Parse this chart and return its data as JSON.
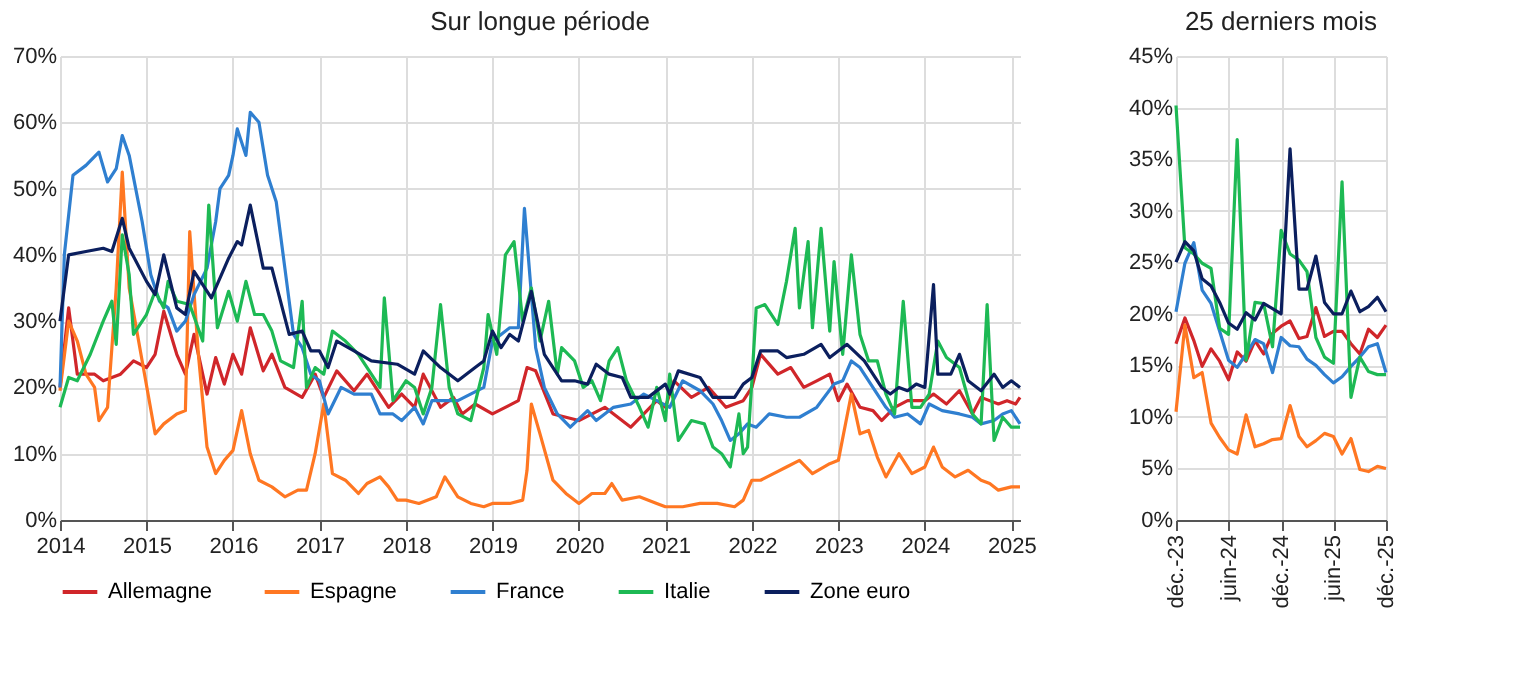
{
  "chart_data": [
    {
      "type": "line",
      "title": "Sur longue période",
      "xlim": [
        2014,
        2025.1
      ],
      "xticks": [
        2014,
        2015,
        2016,
        2017,
        2018,
        2019,
        2020,
        2021,
        2022,
        2023,
        2024,
        2025
      ],
      "ylim": [
        0,
        70
      ],
      "yticks": [
        {
          "value": 0,
          "label": "0%"
        },
        {
          "value": 10,
          "label": "10%"
        },
        {
          "value": 20,
          "label": "20%"
        },
        {
          "value": 30,
          "label": "30%"
        },
        {
          "value": 40,
          "label": "40%"
        },
        {
          "value": 50,
          "label": "50%"
        },
        {
          "value": 60,
          "label": "60%"
        },
        {
          "value": 70,
          "label": "70%"
        }
      ],
      "grid": true,
      "legend": "bottom",
      "line_style": "solid",
      "series": [
        {
          "name": "Allemagne",
          "color": "#d0262a",
          "x": [
            2014.0,
            2014.1,
            2014.2,
            2014.4,
            2014.5,
            2014.7,
            2014.85,
            2015.0,
            2015.1,
            2015.2,
            2015.35,
            2015.45,
            2015.55,
            2015.7,
            2015.8,
            2015.9,
            2016.0,
            2016.1,
            2016.2,
            2016.35,
            2016.45,
            2016.6,
            2016.8,
            2016.95,
            2017.05,
            2017.2,
            2017.4,
            2017.55,
            2017.7,
            2017.8,
            2017.95,
            2018.1,
            2018.2,
            2018.4,
            2018.55,
            2018.65,
            2018.8,
            2019.0,
            2019.3,
            2019.4,
            2019.5,
            2019.7,
            2020.0,
            2020.3,
            2020.6,
            2020.9,
            2021.0,
            2021.1,
            2021.3,
            2021.5,
            2021.7,
            2021.9,
            2022.0,
            2022.1,
            2022.3,
            2022.45,
            2022.6,
            2022.75,
            2022.9,
            2023.0,
            2023.1,
            2023.25,
            2023.4,
            2023.5,
            2023.65,
            2023.8,
            2024.0,
            2024.1,
            2024.25,
            2024.4,
            2024.55,
            2024.65,
            2024.85,
            2024.95,
            2025.05,
            2025.1
          ],
          "values": [
            20,
            32,
            22,
            22,
            21,
            22,
            24,
            23,
            25,
            31.5,
            25,
            22,
            28,
            19,
            24.5,
            20.5,
            25,
            22,
            29,
            22.5,
            25,
            20,
            18.5,
            22,
            18.5,
            22.5,
            19.5,
            22,
            19,
            17,
            19,
            17,
            22,
            17,
            18.5,
            16,
            17.5,
            16,
            18,
            23,
            22.5,
            16,
            15,
            17,
            14,
            18,
            17,
            21,
            18.5,
            20,
            17,
            18,
            20,
            25,
            22,
            23,
            20,
            21,
            22,
            18,
            20.5,
            17,
            16.5,
            15,
            17,
            18,
            18,
            19,
            17.5,
            19.5,
            16,
            18.5,
            17.5,
            18,
            17.5,
            18.5
          ]
        },
        {
          "name": "Espagne",
          "color": "#ff7722",
          "x": [
            2014.0,
            2014.1,
            2014.2,
            2014.3,
            2014.4,
            2014.45,
            2014.55,
            2014.65,
            2014.72,
            2014.8,
            2014.95,
            2015.1,
            2015.2,
            2015.35,
            2015.45,
            2015.5,
            2015.6,
            2015.7,
            2015.8,
            2015.9,
            2016.0,
            2016.1,
            2016.2,
            2016.3,
            2016.45,
            2016.6,
            2016.75,
            2016.85,
            2016.95,
            2017.05,
            2017.15,
            2017.3,
            2017.45,
            2017.55,
            2017.7,
            2017.8,
            2017.9,
            2018.0,
            2018.15,
            2018.35,
            2018.45,
            2018.6,
            2018.75,
            2018.9,
            2019.0,
            2019.2,
            2019.35,
            2019.4,
            2019.45,
            2019.55,
            2019.7,
            2019.85,
            2020.0,
            2020.15,
            2020.3,
            2020.38,
            2020.5,
            2020.7,
            2020.9,
            2021.0,
            2021.2,
            2021.4,
            2021.6,
            2021.8,
            2021.9,
            2022.0,
            2022.1,
            2022.25,
            2022.4,
            2022.55,
            2022.7,
            2022.9,
            2023.0,
            2023.15,
            2023.25,
            2023.35,
            2023.45,
            2023.55,
            2023.7,
            2023.85,
            2024.0,
            2024.1,
            2024.2,
            2024.35,
            2024.5,
            2024.65,
            2024.75,
            2024.85,
            2025.0,
            2025.1
          ],
          "values": [
            19.5,
            30,
            27,
            22,
            20,
            15,
            17,
            35,
            52.5,
            35,
            24,
            13,
            14.5,
            16,
            16.5,
            43.5,
            25,
            11,
            7,
            9,
            10.5,
            16.5,
            10,
            6,
            5,
            3.5,
            4.5,
            4.5,
            10,
            17.5,
            7,
            6,
            4,
            5.5,
            6.5,
            5,
            3,
            3,
            2.5,
            3.5,
            6.5,
            3.5,
            2.5,
            2,
            2.5,
            2.5,
            3,
            7.5,
            17.5,
            13,
            6,
            4,
            2.5,
            4,
            4,
            5.5,
            3,
            3.5,
            2.5,
            2,
            2,
            2.5,
            2.5,
            2,
            3,
            6,
            6,
            7,
            8,
            9,
            7,
            8.5,
            9,
            19,
            13,
            13.5,
            9.5,
            6.5,
            10,
            7,
            8,
            11,
            8,
            6.5,
            7.5,
            6,
            5.5,
            4.5,
            5,
            5
          ]
        },
        {
          "name": "France",
          "color": "#2f7fd0",
          "x": [
            2014.0,
            2014.05,
            2014.15,
            2014.3,
            2014.45,
            2014.55,
            2014.65,
            2014.72,
            2014.8,
            2014.95,
            2015.05,
            2015.15,
            2015.25,
            2015.35,
            2015.45,
            2015.55,
            2015.7,
            2015.8,
            2015.85,
            2015.95,
            2016.0,
            2016.05,
            2016.15,
            2016.2,
            2016.3,
            2016.4,
            2016.5,
            2016.6,
            2016.7,
            2016.8,
            2016.9,
            2017.0,
            2017.1,
            2017.25,
            2017.4,
            2017.6,
            2017.7,
            2017.85,
            2017.95,
            2018.1,
            2018.2,
            2018.3,
            2018.5,
            2018.6,
            2018.9,
            2019.0,
            2019.1,
            2019.2,
            2019.3,
            2019.37,
            2019.5,
            2019.6,
            2019.75,
            2019.9,
            2020.1,
            2020.2,
            2020.4,
            2020.6,
            2020.75,
            2020.9,
            2021.05,
            2021.2,
            2021.4,
            2021.55,
            2021.65,
            2021.75,
            2021.85,
            2021.95,
            2022.05,
            2022.2,
            2022.4,
            2022.55,
            2022.75,
            2022.95,
            2023.05,
            2023.15,
            2023.25,
            2023.45,
            2023.55,
            2023.65,
            2023.8,
            2023.95,
            2024.05,
            2024.2,
            2024.4,
            2024.55,
            2024.65,
            2024.8,
            2024.9,
            2025.0,
            2025.1
          ],
          "values": [
            20,
            40,
            52,
            53.5,
            55.5,
            51,
            53,
            58,
            55,
            45,
            37,
            33,
            32,
            28.5,
            30,
            34,
            38,
            45,
            50,
            52,
            55,
            59,
            55,
            61.5,
            60,
            52,
            48,
            38,
            28,
            26,
            22,
            21,
            16,
            20,
            19,
            19,
            16,
            16,
            15,
            17,
            14.5,
            18,
            18,
            18,
            20,
            27,
            28,
            29,
            29,
            47,
            26,
            20,
            16,
            14,
            16.5,
            15,
            17,
            17.5,
            19,
            18,
            17,
            21,
            19.5,
            17.5,
            15,
            12,
            13,
            14.5,
            14,
            16,
            15.5,
            15.5,
            17,
            20.5,
            21,
            24,
            23,
            19,
            17,
            15.5,
            16,
            14.5,
            17.5,
            16.5,
            16,
            15.5,
            14.5,
            15,
            16,
            16.5,
            14.5
          ]
        },
        {
          "name": "Italie",
          "color": "#1db954",
          "x": [
            2014.0,
            2014.1,
            2014.2,
            2014.35,
            2014.5,
            2014.6,
            2014.65,
            2014.72,
            2014.8,
            2014.85,
            2015.0,
            2015.1,
            2015.2,
            2015.25,
            2015.35,
            2015.5,
            2015.65,
            2015.72,
            2015.82,
            2015.95,
            2016.05,
            2016.15,
            2016.25,
            2016.35,
            2016.45,
            2016.55,
            2016.7,
            2016.8,
            2016.85,
            2016.95,
            2017.05,
            2017.15,
            2017.3,
            2017.45,
            2017.6,
            2017.7,
            2017.75,
            2017.85,
            2018.0,
            2018.1,
            2018.2,
            2018.3,
            2018.4,
            2018.5,
            2018.6,
            2018.75,
            2018.9,
            2018.95,
            2019.05,
            2019.15,
            2019.25,
            2019.35,
            2019.45,
            2019.55,
            2019.65,
            2019.75,
            2019.8,
            2019.95,
            2020.05,
            2020.15,
            2020.25,
            2020.35,
            2020.45,
            2020.55,
            2020.7,
            2020.8,
            2020.9,
            2021.0,
            2021.05,
            2021.15,
            2021.3,
            2021.45,
            2021.55,
            2021.65,
            2021.75,
            2021.85,
            2021.9,
            2021.95,
            2022.0,
            2022.05,
            2022.15,
            2022.3,
            2022.4,
            2022.5,
            2022.55,
            2022.65,
            2022.7,
            2022.8,
            2022.9,
            2022.95,
            2023.05,
            2023.15,
            2023.25,
            2023.35,
            2023.45,
            2023.55,
            2023.65,
            2023.75,
            2023.85,
            2023.95,
            2024.05,
            2024.15,
            2024.25,
            2024.4,
            2024.55,
            2024.65,
            2024.72,
            2024.8,
            2024.9,
            2025.0,
            2025.1
          ],
          "values": [
            17,
            21.5,
            21,
            25,
            30,
            33,
            26.5,
            43,
            37,
            28,
            31,
            34.5,
            32,
            36,
            33,
            32.5,
            27,
            47.5,
            29,
            34.5,
            30,
            36,
            31,
            31,
            28.5,
            24,
            23,
            33,
            20,
            23,
            22,
            28.5,
            27,
            25,
            22,
            20,
            33.5,
            18,
            21,
            20,
            16,
            20,
            32.5,
            20,
            16,
            15,
            23,
            31,
            25,
            40,
            42,
            30,
            35,
            27,
            33,
            22,
            26,
            24,
            20,
            21,
            18,
            24,
            26,
            21,
            17,
            14,
            20,
            15,
            22,
            12,
            15,
            14.5,
            11,
            10,
            8,
            16,
            10,
            11,
            21,
            32,
            32.5,
            29.5,
            36,
            44,
            32,
            42,
            29,
            44,
            28.5,
            39,
            25,
            40,
            28,
            24,
            24,
            19,
            16,
            33,
            17,
            17,
            19,
            27,
            24.5,
            23,
            16,
            14.5,
            32.5,
            12,
            15.5,
            14,
            14
          ]
        },
        {
          "name": "Zone euro",
          "color": "#0b1f5e",
          "x": [
            2014.0,
            2014.1,
            2014.3,
            2014.5,
            2014.6,
            2014.72,
            2014.8,
            2015.0,
            2015.1,
            2015.2,
            2015.35,
            2015.45,
            2015.55,
            2015.75,
            2015.95,
            2016.05,
            2016.1,
            2016.2,
            2016.35,
            2016.45,
            2016.65,
            2016.8,
            2016.9,
            2017.0,
            2017.1,
            2017.2,
            2017.4,
            2017.6,
            2017.9,
            2018.1,
            2018.2,
            2018.4,
            2018.6,
            2018.8,
            2018.9,
            2019.0,
            2019.1,
            2019.2,
            2019.3,
            2019.45,
            2019.6,
            2019.8,
            2019.95,
            2020.1,
            2020.2,
            2020.35,
            2020.5,
            2020.6,
            2020.8,
            2021.0,
            2021.05,
            2021.15,
            2021.4,
            2021.55,
            2021.8,
            2021.9,
            2022.0,
            2022.1,
            2022.3,
            2022.4,
            2022.6,
            2022.8,
            2022.9,
            2023.1,
            2023.3,
            2023.5,
            2023.6,
            2023.7,
            2023.8,
            2023.9,
            2024.0,
            2024.1,
            2024.15,
            2024.3,
            2024.4,
            2024.5,
            2024.65,
            2024.8,
            2024.9,
            2025.0,
            2025.1
          ],
          "values": [
            30,
            40,
            40.5,
            41,
            40.5,
            45.5,
            41,
            36,
            34,
            40,
            32,
            31,
            37.5,
            33.5,
            39.5,
            42,
            41.5,
            47.5,
            38,
            38,
            28,
            28.5,
            25.5,
            25.5,
            23,
            27,
            25.5,
            24,
            23.5,
            22,
            25.5,
            23,
            21,
            23,
            24,
            28.5,
            26,
            28,
            27,
            34.5,
            25,
            21,
            21,
            20.5,
            23.5,
            22,
            21.5,
            18.5,
            18.5,
            20.5,
            19,
            22.5,
            21.5,
            18.5,
            18.5,
            20.5,
            21.5,
            25.5,
            25.5,
            24.5,
            25,
            26.5,
            24.5,
            26.5,
            24,
            20,
            19,
            20,
            19.5,
            20.5,
            20,
            35.5,
            22,
            22,
            25,
            21,
            19.5,
            22,
            20,
            21,
            20
          ]
        }
      ]
    },
    {
      "type": "line",
      "title": "25 derniers mois",
      "xlim": [
        "2023-12",
        "2025-12"
      ],
      "xticks": [
        {
          "value": "2023-12",
          "label": "déc.-23"
        },
        {
          "value": "2024-06",
          "label": "juin-24"
        },
        {
          "value": "2024-12",
          "label": "déc.-24"
        },
        {
          "value": "2025-06",
          "label": "juin-25"
        },
        {
          "value": "2025-12",
          "label": "déc.-25"
        }
      ],
      "ylim": [
        0,
        45
      ],
      "yticks": [
        {
          "value": 0,
          "label": "0%"
        },
        {
          "value": 5,
          "label": "5%"
        },
        {
          "value": 10,
          "label": "10%"
        },
        {
          "value": 15,
          "label": "15%"
        },
        {
          "value": 20,
          "label": "20%"
        },
        {
          "value": 25,
          "label": "25%"
        },
        {
          "value": 30,
          "label": "30%"
        },
        {
          "value": 35,
          "label": "35%"
        },
        {
          "value": 40,
          "label": "40%"
        },
        {
          "value": 45,
          "label": "45%"
        }
      ],
      "grid": true,
      "line_style": "solid",
      "x": [
        "2023-12",
        "2024-01",
        "2024-02",
        "2024-03",
        "2024-04",
        "2024-05",
        "2024-06",
        "2024-07",
        "2024-08",
        "2024-09",
        "2024-10",
        "2024-11",
        "2024-12",
        "2025-01",
        "2025-02",
        "2025-03",
        "2025-04",
        "2025-05",
        "2025-06",
        "2025-07",
        "2025-08",
        "2025-09",
        "2025-10",
        "2025-11",
        "2025-12"
      ],
      "series": [
        {
          "color": "#d0262a",
          "values": [
            17.1,
            19.6,
            17.4,
            14.9,
            16.6,
            15.4,
            13.6,
            16.3,
            15.4,
            17.4,
            16.1,
            18.1,
            18.8,
            19.3,
            17.6,
            17.8,
            20.6,
            17.8,
            18.3,
            18.3,
            17.1,
            16.1,
            18.5,
            17.7,
            18.9
          ]
        },
        {
          "color": "#ff7722",
          "values": [
            10.5,
            18.9,
            13.8,
            14.3,
            9.4,
            8.0,
            6.8,
            6.4,
            10.2,
            7.1,
            7.4,
            7.8,
            7.9,
            11.1,
            8.1,
            7.1,
            7.7,
            8.4,
            8.1,
            6.4,
            7.9,
            4.9,
            4.7,
            5.2,
            5.0
          ]
        },
        {
          "color": "#2f7fd0",
          "values": [
            20.2,
            24.9,
            26.9,
            22.3,
            21.0,
            18.3,
            15.5,
            14.8,
            16.1,
            17.5,
            17.1,
            14.3,
            17.7,
            16.9,
            16.8,
            15.6,
            15.0,
            14.1,
            13.3,
            13.9,
            14.9,
            15.8,
            16.8,
            17.1,
            14.3
          ]
        },
        {
          "color": "#1db954",
          "values": [
            40.2,
            26.4,
            25.8,
            24.9,
            24.4,
            18.6,
            18.0,
            36.9,
            15.5,
            21.1,
            21.0,
            16.8,
            28.1,
            25.8,
            25.2,
            24.1,
            17.7,
            15.8,
            15.2,
            32.8,
            11.9,
            15.8,
            14.4,
            14.1,
            14.1
          ]
        },
        {
          "color": "#0b1f5e",
          "values": [
            25.0,
            27.0,
            26.1,
            23.4,
            22.7,
            21.1,
            19.1,
            18.5,
            20.1,
            19.4,
            21.0,
            20.5,
            20.0,
            36.0,
            22.4,
            22.4,
            25.6,
            21.1,
            20.0,
            20.0,
            22.2,
            20.2,
            20.7,
            21.6,
            20.2
          ]
        }
      ]
    }
  ]
}
